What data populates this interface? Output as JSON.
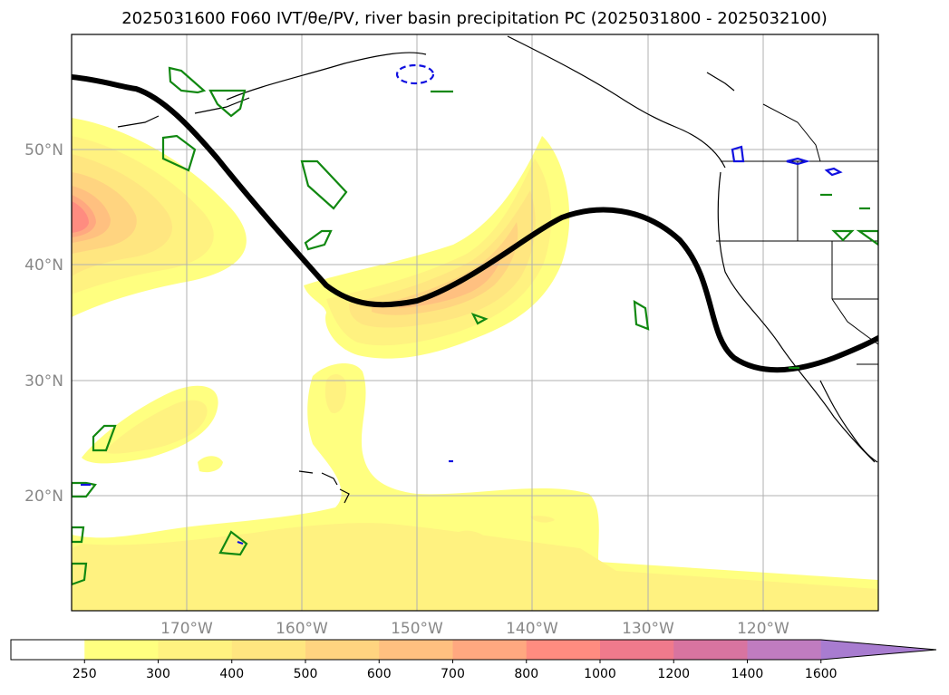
{
  "title": "2025031600 F060 IVT/θe/PV, river basin precipitation PC (2025031800 - 2025032100)",
  "map": {
    "lat_labels": [
      "50°N",
      "40°N",
      "30°N",
      "20°N"
    ],
    "lon_labels": [
      "170°W",
      "160°W",
      "150°W",
      "140°W",
      "130°W",
      "120°W"
    ],
    "extent": {
      "lon_min": -180,
      "lon_max": -110,
      "lat_min": 10,
      "lat_max": 60
    }
  },
  "colorbar": {
    "ticks": [
      "250",
      "300",
      "400",
      "500",
      "600",
      "700",
      "800",
      "1000",
      "1200",
      "1400",
      "1600"
    ],
    "colors": [
      "#ffffff",
      "#ffff80",
      "#fff280",
      "#ffe680",
      "#ffd480",
      "#ffc080",
      "#ffa880",
      "#ff8c80",
      "#f07a8c",
      "#d874a0",
      "#c07cc0",
      "#a87cd0"
    ],
    "extend": "max"
  }
}
